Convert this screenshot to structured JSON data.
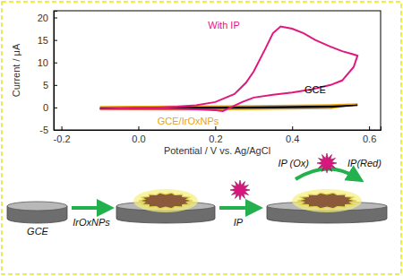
{
  "chart_data": {
    "type": "line",
    "x_label": "Potential / V vs. Ag/AgCl",
    "y_label": "Current / μA",
    "xlim": [
      -0.22,
      0.63
    ],
    "xticks": [
      -0.2,
      {
        "value": 0,
        "label": "0.0"
      },
      0.2,
      0.4,
      0.6
    ],
    "ylim": [
      -5,
      21.5
    ],
    "yticks": [
      -5,
      0,
      5,
      10,
      15,
      20
    ],
    "series": [
      {
        "name": "With IP",
        "color": "#e0177f",
        "x": [
          -0.1,
          -0.05,
          0,
          0.05,
          0.1,
          0.15,
          0.2,
          0.25,
          0.28,
          0.3,
          0.33,
          0.35,
          0.37,
          0.4,
          0.43,
          0.46,
          0.5,
          0.53,
          0.56,
          0.57,
          0.56,
          0.53,
          0.5,
          0.45,
          0.4,
          0.35,
          0.3,
          0.27,
          0.24,
          0.22,
          0.2,
          0.15,
          0.1,
          0.05,
          0,
          -0.05,
          -0.1
        ],
        "values": [
          -0.3,
          -0.2,
          -0.1,
          0,
          0.2,
          0.5,
          1.2,
          3,
          5.5,
          8,
          13,
          16.5,
          18,
          17.5,
          16.5,
          15,
          13.5,
          12.5,
          11.8,
          11.5,
          9,
          6,
          5,
          4,
          3.3,
          2.8,
          2.2,
          1.2,
          0,
          -0.8,
          -0.6,
          -0.4,
          -0.3,
          -0.3,
          -0.3,
          -0.3,
          -0.3
        ]
      },
      {
        "name": "GCE",
        "color": "#000000",
        "x": [
          -0.1,
          0.1,
          0.3,
          0.5,
          0.57,
          0.5,
          0.3,
          0.1,
          -0.1
        ],
        "values": [
          -0.1,
          0,
          0.1,
          0.3,
          0.5,
          0.1,
          -0.1,
          -0.2,
          -0.2
        ]
      },
      {
        "name": "GCE/IrOxNPs",
        "color": "#e8a317",
        "x": [
          -0.1,
          0.1,
          0.3,
          0.5,
          0.57,
          0.5,
          0.3,
          0.1,
          -0.1
        ],
        "values": [
          0.2,
          0.3,
          0.4,
          0.6,
          0.8,
          -0.2,
          -0.4,
          -0.5,
          -0.4
        ]
      }
    ]
  },
  "diagram": {
    "steps": [
      {
        "label": "GCE"
      },
      {
        "label": "IrOxNPs"
      },
      {
        "label": "IP"
      }
    ],
    "products": [
      {
        "label": "IP (Ox)"
      },
      {
        "label": "IP(Red)"
      }
    ]
  }
}
